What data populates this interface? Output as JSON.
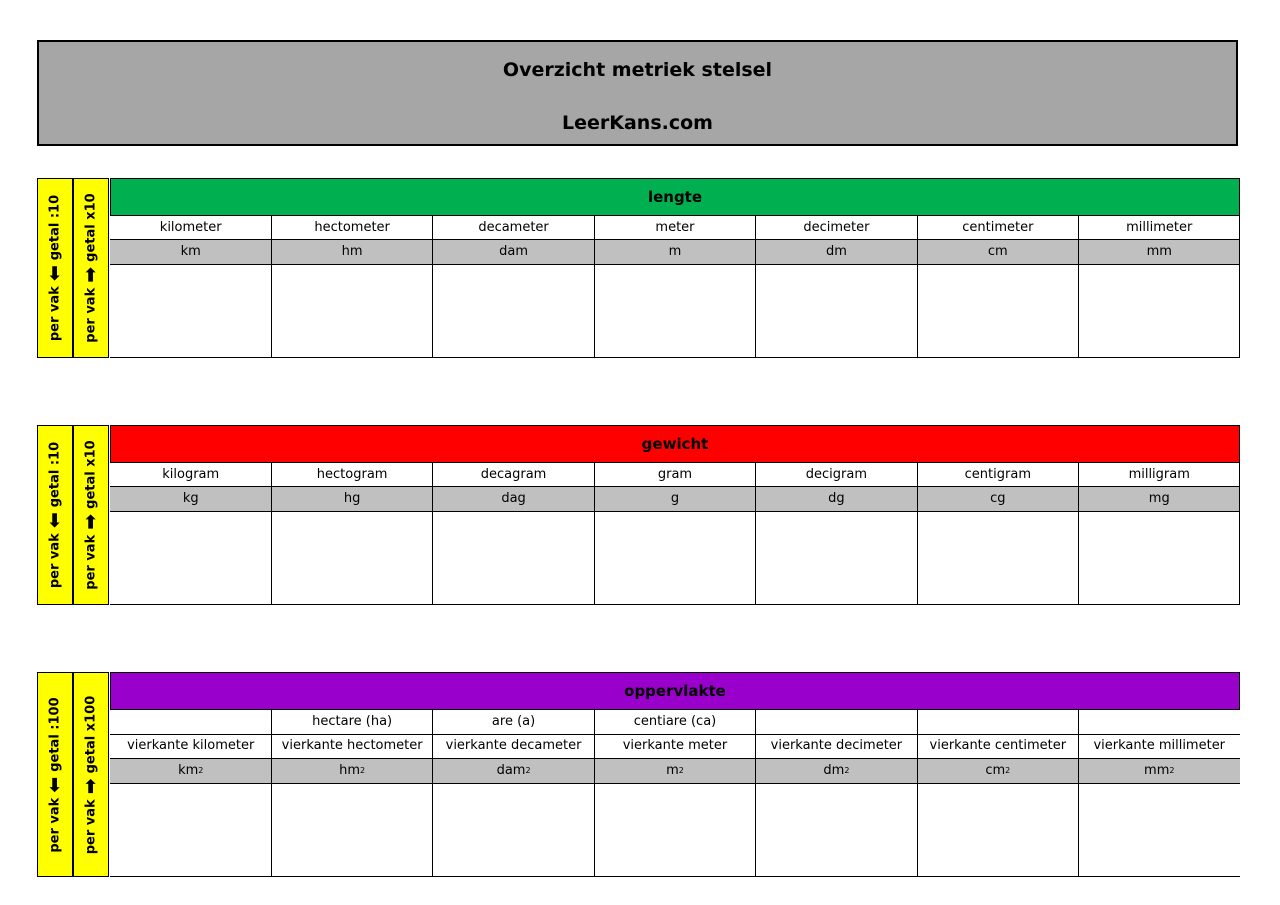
{
  "header": {
    "title": "Overzicht metriek stelsel",
    "site": "LeerKans.com"
  },
  "colors": {
    "lengte": "#00b050",
    "gewicht": "#ff0000",
    "oppervlakte": "#9900cc",
    "side": "#ffff00",
    "gray": "#c0c0c0"
  },
  "lengte": {
    "title": "lengte",
    "side_divide": "per vak",
    "side_divide_value": "getal :10",
    "side_multiply": "per vak",
    "side_multiply_value": "getal x10",
    "names": [
      "kilometer",
      "hectometer",
      "decameter",
      "meter",
      "decimeter",
      "centimeter",
      "millimeter"
    ],
    "units": [
      "km",
      "hm",
      "dam",
      "m",
      "dm",
      "cm",
      "mm"
    ]
  },
  "gewicht": {
    "title": "gewicht",
    "side_divide": "per vak",
    "side_divide_value": "getal :10",
    "side_multiply": "per vak",
    "side_multiply_value": "getal x10",
    "names": [
      "kilogram",
      "hectogram",
      "decagram",
      "gram",
      "decigram",
      "centigram",
      "milligram"
    ],
    "units": [
      "kg",
      "hg",
      "dag",
      "g",
      "dg",
      "cg",
      "mg"
    ]
  },
  "oppervlakte": {
    "title": "oppervlakte",
    "side_divide": "per vak",
    "side_divide_value": "getal :100",
    "side_multiply": "per vak",
    "side_multiply_value": "getal x100",
    "aliases": [
      "",
      "hectare (ha)",
      "are (a)",
      "centiare (ca)",
      "",
      "",
      ""
    ],
    "names": [
      "vierkante kilometer",
      "vierkante hectometer",
      "vierkante decameter",
      "vierkante meter",
      "vierkante decimeter",
      "vierkante centimeter",
      "vierkante millimeter"
    ],
    "units": [
      "km",
      "hm",
      "dam",
      "m",
      "dm",
      "cm",
      "mm"
    ],
    "exponent": "2"
  }
}
